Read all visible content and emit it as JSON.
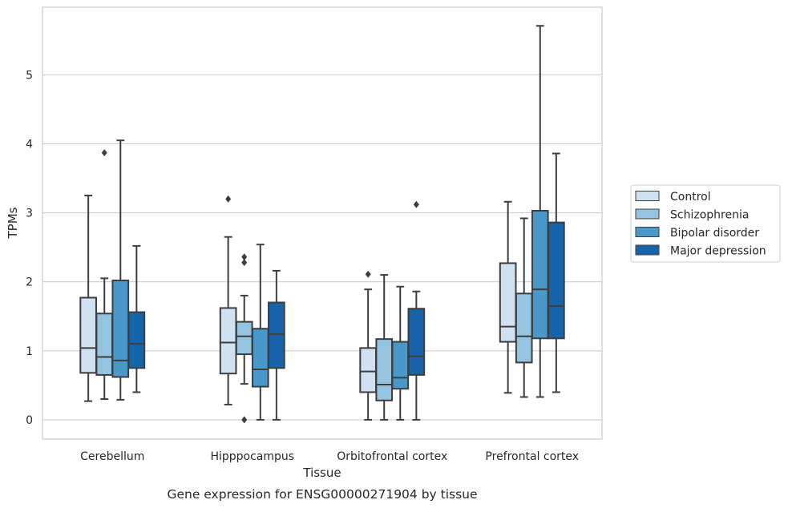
{
  "chart_data": {
    "type": "boxplot",
    "caption": "Gene expression for ENSG00000271904 by tissue",
    "xlabel": "Tissue",
    "ylabel": "TPMs",
    "ylim": [
      -0.28,
      5.98
    ],
    "yticks": [
      0,
      1,
      2,
      3,
      4,
      5
    ],
    "grid": true,
    "legend_position": "right",
    "categories": [
      "Cerebellum",
      "Hipppocampus",
      "Orbitofrontal cortex",
      "Prefrontal cortex"
    ],
    "series": [
      {
        "name": "Control",
        "color": "#d0e1f2",
        "boxes": [
          {
            "min": 0.27,
            "q1": 0.68,
            "median": 1.04,
            "q3": 1.77,
            "max": 3.25,
            "outliers": []
          },
          {
            "min": 0.22,
            "q1": 0.67,
            "median": 1.12,
            "q3": 1.62,
            "max": 2.65,
            "outliers": [
              3.2
            ]
          },
          {
            "min": 0.0,
            "q1": 0.4,
            "median": 0.7,
            "q3": 1.04,
            "max": 1.89,
            "outliers": [
              2.11
            ]
          },
          {
            "min": 0.39,
            "q1": 1.13,
            "median": 1.35,
            "q3": 2.27,
            "max": 3.16,
            "outliers": []
          }
        ]
      },
      {
        "name": "Schizophrenia",
        "color": "#94c4df",
        "boxes": [
          {
            "min": 0.3,
            "q1": 0.65,
            "median": 0.91,
            "q3": 1.54,
            "max": 2.05,
            "outliers": [
              3.87
            ]
          },
          {
            "min": 0.52,
            "q1": 0.95,
            "median": 1.21,
            "q3": 1.42,
            "max": 1.8,
            "outliers": [
              0.0,
              2.28,
              2.36
            ]
          },
          {
            "min": 0.0,
            "q1": 0.28,
            "median": 0.51,
            "q3": 1.17,
            "max": 2.1,
            "outliers": []
          },
          {
            "min": 0.33,
            "q1": 0.83,
            "median": 1.21,
            "q3": 1.83,
            "max": 2.92,
            "outliers": []
          }
        ]
      },
      {
        "name": "Bipolar disorder",
        "color": "#4a98c9",
        "boxes": [
          {
            "min": 0.29,
            "q1": 0.62,
            "median": 0.86,
            "q3": 2.02,
            "max": 4.05,
            "outliers": []
          },
          {
            "min": 0.0,
            "q1": 0.48,
            "median": 0.73,
            "q3": 1.32,
            "max": 2.54,
            "outliers": []
          },
          {
            "min": 0.0,
            "q1": 0.45,
            "median": 0.61,
            "q3": 1.13,
            "max": 1.93,
            "outliers": []
          },
          {
            "min": 0.33,
            "q1": 1.18,
            "median": 1.89,
            "q3": 3.03,
            "max": 5.71,
            "outliers": []
          }
        ]
      },
      {
        "name": "Major depression",
        "color": "#1764ab",
        "boxes": [
          {
            "min": 0.4,
            "q1": 0.75,
            "median": 1.1,
            "q3": 1.56,
            "max": 2.52,
            "outliers": []
          },
          {
            "min": 0.0,
            "q1": 0.75,
            "median": 1.24,
            "q3": 1.7,
            "max": 2.16,
            "outliers": []
          },
          {
            "min": 0.0,
            "q1": 0.65,
            "median": 0.92,
            "q3": 1.61,
            "max": 1.86,
            "outliers": [
              3.12
            ]
          },
          {
            "min": 0.4,
            "q1": 1.18,
            "median": 1.65,
            "q3": 2.86,
            "max": 3.86,
            "outliers": []
          }
        ]
      }
    ]
  }
}
